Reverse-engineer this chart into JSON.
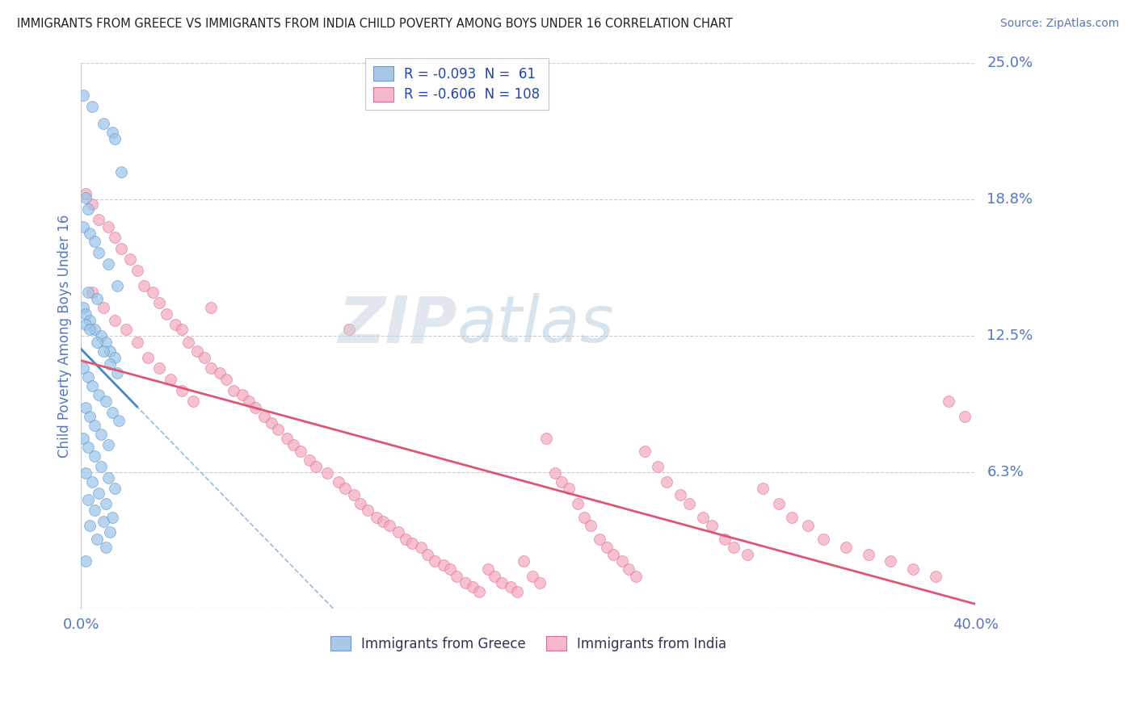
{
  "title": "IMMIGRANTS FROM GREECE VS IMMIGRANTS FROM INDIA CHILD POVERTY AMONG BOYS UNDER 16 CORRELATION CHART",
  "source": "Source: ZipAtlas.com",
  "ylabel": "Child Poverty Among Boys Under 16",
  "greece_color": "#99c4e8",
  "greece_edge": "#6699cc",
  "india_color": "#f5a8bc",
  "india_edge": "#e07090",
  "greece_line_color": "#4488cc",
  "india_line_color": "#e05575",
  "dash_line_color": "#99bbdd",
  "title_color": "#222222",
  "source_color": "#5577bb",
  "ylabel_color": "#5577bb",
  "tick_color": "#5577bb",
  "grid_color": "#cccccc",
  "xlim": [
    0.0,
    0.4
  ],
  "ylim": [
    0.0,
    0.25
  ],
  "ytick_vals": [
    0.0,
    0.0625,
    0.125,
    0.1875,
    0.25
  ],
  "ytick_labels": [
    "",
    "6.3%",
    "12.5%",
    "18.8%",
    "25.0%"
  ],
  "xtick_vals": [
    0.0,
    0.1,
    0.2,
    0.3,
    0.4
  ],
  "xtick_labels": [
    "0.0%",
    "",
    "",
    "",
    "40.0%"
  ],
  "greece_R": -0.093,
  "greece_N": 61,
  "india_R": -0.606,
  "india_N": 108,
  "greece_x": [
    0.001,
    0.005,
    0.01,
    0.014,
    0.015,
    0.018,
    0.002,
    0.003,
    0.001,
    0.004,
    0.006,
    0.008,
    0.012,
    0.016,
    0.003,
    0.007,
    0.001,
    0.002,
    0.004,
    0.006,
    0.009,
    0.011,
    0.013,
    0.015,
    0.002,
    0.004,
    0.007,
    0.01,
    0.013,
    0.016,
    0.001,
    0.003,
    0.005,
    0.008,
    0.011,
    0.014,
    0.017,
    0.002,
    0.004,
    0.006,
    0.009,
    0.012,
    0.001,
    0.003,
    0.006,
    0.009,
    0.012,
    0.015,
    0.002,
    0.005,
    0.008,
    0.011,
    0.014,
    0.003,
    0.006,
    0.01,
    0.013,
    0.004,
    0.007,
    0.011,
    0.002
  ],
  "greece_y": [
    0.235,
    0.23,
    0.222,
    0.218,
    0.215,
    0.2,
    0.188,
    0.183,
    0.175,
    0.172,
    0.168,
    0.163,
    0.158,
    0.148,
    0.145,
    0.142,
    0.138,
    0.135,
    0.132,
    0.128,
    0.125,
    0.122,
    0.118,
    0.115,
    0.13,
    0.128,
    0.122,
    0.118,
    0.112,
    0.108,
    0.11,
    0.106,
    0.102,
    0.098,
    0.095,
    0.09,
    0.086,
    0.092,
    0.088,
    0.084,
    0.08,
    0.075,
    0.078,
    0.074,
    0.07,
    0.065,
    0.06,
    0.055,
    0.062,
    0.058,
    0.053,
    0.048,
    0.042,
    0.05,
    0.045,
    0.04,
    0.035,
    0.038,
    0.032,
    0.028,
    0.022
  ],
  "india_x": [
    0.002,
    0.005,
    0.008,
    0.012,
    0.015,
    0.018,
    0.022,
    0.025,
    0.028,
    0.032,
    0.035,
    0.038,
    0.042,
    0.045,
    0.048,
    0.052,
    0.055,
    0.058,
    0.062,
    0.065,
    0.068,
    0.072,
    0.075,
    0.078,
    0.082,
    0.085,
    0.088,
    0.092,
    0.095,
    0.098,
    0.005,
    0.01,
    0.015,
    0.02,
    0.025,
    0.03,
    0.035,
    0.04,
    0.045,
    0.05,
    0.102,
    0.105,
    0.11,
    0.115,
    0.118,
    0.122,
    0.125,
    0.128,
    0.132,
    0.135,
    0.138,
    0.142,
    0.145,
    0.148,
    0.152,
    0.155,
    0.158,
    0.162,
    0.165,
    0.168,
    0.172,
    0.175,
    0.178,
    0.182,
    0.185,
    0.188,
    0.192,
    0.195,
    0.198,
    0.202,
    0.205,
    0.208,
    0.212,
    0.215,
    0.218,
    0.222,
    0.225,
    0.228,
    0.232,
    0.235,
    0.238,
    0.242,
    0.245,
    0.248,
    0.252,
    0.258,
    0.262,
    0.268,
    0.272,
    0.278,
    0.282,
    0.288,
    0.292,
    0.298,
    0.305,
    0.312,
    0.318,
    0.325,
    0.332,
    0.342,
    0.352,
    0.362,
    0.372,
    0.382,
    0.388,
    0.395,
    0.058,
    0.12
  ],
  "india_y": [
    0.19,
    0.185,
    0.178,
    0.175,
    0.17,
    0.165,
    0.16,
    0.155,
    0.148,
    0.145,
    0.14,
    0.135,
    0.13,
    0.128,
    0.122,
    0.118,
    0.115,
    0.11,
    0.108,
    0.105,
    0.1,
    0.098,
    0.095,
    0.092,
    0.088,
    0.085,
    0.082,
    0.078,
    0.075,
    0.072,
    0.145,
    0.138,
    0.132,
    0.128,
    0.122,
    0.115,
    0.11,
    0.105,
    0.1,
    0.095,
    0.068,
    0.065,
    0.062,
    0.058,
    0.055,
    0.052,
    0.048,
    0.045,
    0.042,
    0.04,
    0.038,
    0.035,
    0.032,
    0.03,
    0.028,
    0.025,
    0.022,
    0.02,
    0.018,
    0.015,
    0.012,
    0.01,
    0.008,
    0.018,
    0.015,
    0.012,
    0.01,
    0.008,
    0.022,
    0.015,
    0.012,
    0.078,
    0.062,
    0.058,
    0.055,
    0.048,
    0.042,
    0.038,
    0.032,
    0.028,
    0.025,
    0.022,
    0.018,
    0.015,
    0.072,
    0.065,
    0.058,
    0.052,
    0.048,
    0.042,
    0.038,
    0.032,
    0.028,
    0.025,
    0.055,
    0.048,
    0.042,
    0.038,
    0.032,
    0.028,
    0.025,
    0.022,
    0.018,
    0.015,
    0.095,
    0.088,
    0.138,
    0.128
  ]
}
